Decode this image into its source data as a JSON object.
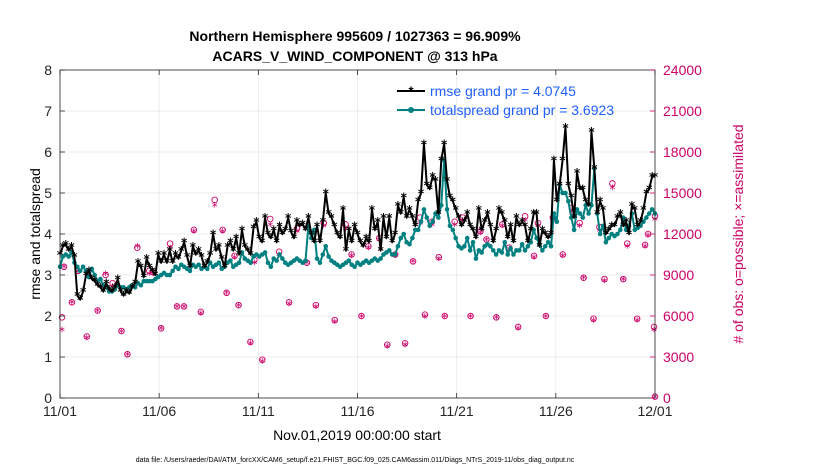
{
  "chart_data": {
    "type": "line",
    "title_line1": "Northern Hemisphere 995609 / 1027363 = 96.909%",
    "title_line2": "ACARS_V_WIND_COMPONENT @ 313 hPa",
    "xlabel": "Nov.01,2019 00:00:00 start",
    "ylabel_left": "rmse and totalspread",
    "ylabel_right": "# of obs: o=possible; ×=assimilated",
    "footer": "data file: /Users/raeder/DAI/ATM_forcXX/CAM6_setup/f.e21.FHIST_BGC.f09_025.CAM6assim.011/Diags_NTrS_2019-11/obs_diag_output.nc",
    "x_range": [
      0,
      30
    ],
    "x_ticks": [
      0,
      5,
      10,
      15,
      20,
      25,
      30
    ],
    "x_tick_labels": [
      "11/01",
      "11/06",
      "11/11",
      "11/16",
      "11/21",
      "11/26",
      "12/01"
    ],
    "ylim_left": [
      0,
      8
    ],
    "y_ticks_left": [
      "0",
      "1",
      "2",
      "3",
      "4",
      "5",
      "6",
      "7",
      "8"
    ],
    "ylim_right": [
      0,
      24000
    ],
    "y_ticks_right": [
      "0",
      "3000",
      "6000",
      "9000",
      "12000",
      "15000",
      "18000",
      "21000",
      "24000"
    ],
    "colors": {
      "rmse": "#000000",
      "spread": "#008080",
      "obs": "#cc0066",
      "legend_text": "#1f5fff"
    },
    "series": [
      {
        "name": "rmse",
        "legend": "rmse grand pr = 4.0745",
        "values": [
          3.5,
          3.7,
          3.75,
          3.6,
          3.7,
          3.45,
          2.5,
          2.4,
          2.6,
          3.0,
          3.1,
          2.9,
          2.85,
          2.75,
          2.7,
          2.6,
          2.8,
          2.65,
          2.6,
          2.7,
          2.9,
          2.6,
          2.5,
          2.6,
          2.55,
          2.7,
          2.8,
          3.3,
          3.2,
          2.95,
          3.4,
          3.2,
          3.1,
          3.0,
          3.5,
          3.3,
          3.5,
          3.3,
          3.6,
          3.3,
          3.5,
          3.4,
          3.6,
          3.8,
          3.45,
          3.2,
          3.7,
          3.5,
          3.6,
          3.45,
          3.2,
          3.3,
          3.5,
          4.0,
          3.6,
          3.7,
          3.4,
          3.2,
          3.7,
          3.8,
          3.6,
          3.9,
          3.5,
          4.1,
          3.7,
          3.6,
          3.5,
          4.15,
          4.3,
          3.9,
          3.8,
          4.4,
          4.0,
          3.9,
          4.1,
          3.8,
          4.2,
          4.0,
          4.1,
          4.4,
          4.05,
          3.9,
          4.3,
          4.2,
          4.25,
          4.1,
          4.4,
          4.0,
          3.8,
          4.2,
          3.8,
          4.3,
          5.0,
          4.5,
          4.4,
          4.2,
          4.0,
          3.9,
          4.6,
          3.6,
          4.1,
          3.8,
          4.2,
          4.0,
          3.8,
          3.7,
          3.9,
          3.8,
          4.6,
          4.1,
          4.3,
          3.6,
          4.4,
          3.9,
          4.4,
          3.8,
          4.0,
          4.7,
          4.5,
          4.9,
          4.4,
          4.6,
          4.4,
          4.2,
          4.8,
          5.0,
          6.2,
          5.2,
          5.1,
          5.4,
          5.3,
          4.5,
          5.8,
          6.2,
          5.3,
          4.9,
          4.8,
          4.6,
          4.4,
          4.2,
          4.3,
          4.5,
          4.2,
          4.1,
          3.9,
          4.6,
          4.1,
          4.3,
          4.5,
          4.2,
          3.8,
          4.1,
          4.6,
          4.5,
          4.3,
          3.9,
          4.2,
          3.8,
          4.4,
          4.2,
          4.3,
          4.2,
          3.8,
          4.1,
          4.5,
          4.5,
          3.7,
          4.1,
          4.0,
          3.9,
          4.0,
          5.8,
          4.8,
          5.2,
          5.8,
          6.6,
          5.2,
          4.9,
          4.4,
          5.5,
          5.1,
          5.1,
          4.8,
          4.7,
          6.5,
          5.6,
          4.5,
          4.8,
          4.6,
          4.0,
          4.1,
          4.2,
          4.2,
          4.4,
          4.5,
          4.2,
          4.3,
          4.0,
          4.7,
          4.6,
          4.2,
          4.3,
          4.6,
          5.0,
          5.1,
          5.4,
          5.4
        ]
      },
      {
        "name": "totalspread",
        "legend": "totalspread grand pr = 3.6923",
        "values": [
          3.2,
          3.45,
          3.5,
          3.45,
          3.55,
          3.3,
          3.2,
          3.1,
          3.2,
          3.1,
          2.95,
          3.15,
          3.0,
          2.85,
          2.9,
          2.75,
          2.7,
          2.6,
          2.6,
          2.65,
          2.75,
          2.7,
          2.7,
          2.65,
          2.7,
          2.75,
          2.7,
          2.8,
          2.75,
          2.85,
          2.85,
          2.85,
          2.85,
          2.9,
          2.95,
          3.0,
          3.05,
          3.0,
          3.0,
          3.1,
          3.2,
          3.15,
          3.25,
          3.2,
          3.15,
          3.1,
          3.25,
          3.2,
          3.25,
          3.15,
          3.2,
          3.15,
          3.3,
          3.2,
          3.25,
          3.3,
          3.15,
          3.2,
          3.3,
          3.35,
          3.2,
          3.25,
          3.3,
          3.55,
          3.4,
          3.35,
          3.3,
          3.45,
          3.5,
          3.45,
          3.5,
          3.55,
          3.3,
          3.2,
          3.4,
          3.35,
          3.5,
          3.4,
          3.3,
          3.25,
          3.3,
          3.35,
          3.4,
          3.35,
          3.3,
          3.35,
          4.2,
          3.9,
          4.1,
          3.4,
          3.3,
          3.5,
          3.7,
          3.45,
          3.35,
          3.3,
          3.25,
          3.2,
          3.25,
          3.3,
          3.35,
          3.25,
          3.2,
          3.3,
          3.25,
          3.3,
          3.35,
          3.3,
          3.35,
          3.4,
          3.35,
          3.4,
          3.5,
          3.55,
          3.6,
          3.5,
          3.5,
          3.7,
          3.9,
          4.0,
          3.8,
          3.75,
          3.9,
          4.1,
          4.1,
          4.3,
          4.6,
          4.4,
          4.2,
          4.3,
          4.5,
          4.4,
          4.7,
          5.8,
          4.6,
          4.2,
          4.1,
          3.9,
          3.7,
          3.65,
          3.7,
          3.9,
          3.6,
          3.8,
          3.4,
          3.6,
          3.55,
          3.7,
          3.75,
          3.7,
          3.6,
          3.5,
          3.6,
          3.55,
          3.8,
          3.5,
          3.65,
          3.5,
          3.6,
          3.6,
          3.75,
          3.6,
          3.7,
          3.8,
          4.1,
          3.9,
          3.75,
          3.6,
          3.7,
          3.8,
          3.7,
          4.5,
          4.3,
          5.2,
          5.0,
          5.0,
          4.8,
          4.4,
          4.1,
          4.6,
          4.5,
          4.4,
          4.7,
          4.5,
          4.7,
          5.6,
          4.5,
          4.0,
          4.2,
          3.8,
          3.9,
          4.0,
          3.95,
          4.0,
          4.1,
          4.4,
          4.1,
          4.2,
          4.5,
          4.1,
          4.15,
          4.2,
          4.3,
          4.4,
          4.5,
          4.6,
          4.5
        ]
      }
    ],
    "obs_possible": [
      [
        0.1,
        5900
      ],
      [
        0.2,
        9600
      ],
      [
        0.6,
        7000
      ],
      [
        0.9,
        9300
      ],
      [
        1.35,
        4500
      ],
      [
        1.9,
        6400
      ],
      [
        2.3,
        9000
      ],
      [
        2.65,
        8400
      ],
      [
        3.1,
        4900
      ],
      [
        3.4,
        3200
      ],
      [
        3.9,
        11000
      ],
      [
        4.5,
        9300
      ],
      [
        4.7,
        9200
      ],
      [
        5.1,
        5100
      ],
      [
        5.55,
        11300
      ],
      [
        5.9,
        6700
      ],
      [
        6.25,
        6700
      ],
      [
        6.75,
        12300
      ],
      [
        7.1,
        6300
      ],
      [
        7.8,
        14500
      ],
      [
        8.2,
        12300
      ],
      [
        8.4,
        7700
      ],
      [
        8.8,
        10400
      ],
      [
        9.0,
        6800
      ],
      [
        9.6,
        4100
      ],
      [
        9.8,
        10100
      ],
      [
        10.2,
        2800
      ],
      [
        10.6,
        13100
      ],
      [
        11.05,
        10700
      ],
      [
        11.55,
        7000
      ],
      [
        11.95,
        12400
      ],
      [
        12.45,
        9900
      ],
      [
        12.9,
        6800
      ],
      [
        13.3,
        12800
      ],
      [
        13.85,
        5700
      ],
      [
        14.4,
        12700
      ],
      [
        14.7,
        10500
      ],
      [
        15.2,
        6000
      ],
      [
        15.55,
        11100
      ],
      [
        16.1,
        11700
      ],
      [
        16.5,
        3900
      ],
      [
        16.9,
        10500
      ],
      [
        17.4,
        4000
      ],
      [
        17.8,
        10000
      ],
      [
        18.15,
        13200
      ],
      [
        18.4,
        6100
      ],
      [
        18.75,
        12900
      ],
      [
        19.1,
        10300
      ],
      [
        19.4,
        6000
      ],
      [
        19.9,
        12900
      ],
      [
        20.3,
        13200
      ],
      [
        20.7,
        6000
      ],
      [
        21.2,
        12200
      ],
      [
        21.5,
        11600
      ],
      [
        22.0,
        5900
      ],
      [
        22.3,
        12700
      ],
      [
        22.65,
        11000
      ],
      [
        23.1,
        5200
      ],
      [
        23.45,
        13300
      ],
      [
        23.9,
        10400
      ],
      [
        24.1,
        12800
      ],
      [
        24.5,
        6000
      ],
      [
        24.85,
        13200
      ],
      [
        25.35,
        10500
      ],
      [
        25.8,
        13900
      ],
      [
        26.2,
        12800
      ],
      [
        26.4,
        8800
      ],
      [
        26.9,
        5800
      ],
      [
        27.2,
        12500
      ],
      [
        27.45,
        8700
      ],
      [
        27.85,
        15700
      ],
      [
        28.4,
        8700
      ],
      [
        28.6,
        11300
      ],
      [
        29.1,
        5800
      ],
      [
        29.5,
        11200
      ],
      [
        29.65,
        12000
      ],
      [
        29.95,
        5200
      ],
      [
        30.0,
        13300
      ],
      [
        30.0,
        100
      ]
    ],
    "obs_assimilated": [
      [
        0.1,
        4900
      ],
      [
        0.2,
        9500
      ],
      [
        0.6,
        6900
      ],
      [
        0.9,
        9200
      ],
      [
        1.35,
        4300
      ],
      [
        1.9,
        6300
      ],
      [
        2.3,
        9000
      ],
      [
        2.65,
        8100
      ],
      [
        3.1,
        4800
      ],
      [
        3.4,
        3100
      ],
      [
        3.9,
        11000
      ],
      [
        4.5,
        9000
      ],
      [
        4.7,
        9000
      ],
      [
        5.1,
        5000
      ],
      [
        5.55,
        10900
      ],
      [
        5.9,
        6600
      ],
      [
        6.25,
        6600
      ],
      [
        6.75,
        12100
      ],
      [
        7.1,
        6100
      ],
      [
        7.8,
        14000
      ],
      [
        8.2,
        12100
      ],
      [
        8.4,
        7600
      ],
      [
        8.8,
        10200
      ],
      [
        9.0,
        6700
      ],
      [
        9.6,
        3900
      ],
      [
        9.8,
        9800
      ],
      [
        10.2,
        2600
      ],
      [
        10.6,
        12600
      ],
      [
        11.05,
        10400
      ],
      [
        11.55,
        6800
      ],
      [
        11.95,
        12100
      ],
      [
        12.45,
        9800
      ],
      [
        12.9,
        6600
      ],
      [
        13.3,
        12500
      ],
      [
        13.85,
        5500
      ],
      [
        14.4,
        12300
      ],
      [
        14.7,
        10300
      ],
      [
        15.2,
        5900
      ],
      [
        15.55,
        10900
      ],
      [
        16.1,
        11500
      ],
      [
        16.5,
        3700
      ],
      [
        16.9,
        10300
      ],
      [
        17.4,
        3800
      ],
      [
        17.8,
        9900
      ],
      [
        18.15,
        12700
      ],
      [
        18.4,
        5900
      ],
      [
        18.75,
        12600
      ],
      [
        19.1,
        10100
      ],
      [
        19.4,
        5900
      ],
      [
        19.9,
        12600
      ],
      [
        20.3,
        12900
      ],
      [
        20.7,
        5900
      ],
      [
        21.2,
        12000
      ],
      [
        21.5,
        11500
      ],
      [
        22.0,
        5800
      ],
      [
        22.3,
        12500
      ],
      [
        22.65,
        10800
      ],
      [
        23.1,
        5000
      ],
      [
        23.45,
        12900
      ],
      [
        23.9,
        10200
      ],
      [
        24.1,
        12500
      ],
      [
        24.5,
        5900
      ],
      [
        24.85,
        12900
      ],
      [
        25.35,
        10300
      ],
      [
        25.8,
        13600
      ],
      [
        26.2,
        12500
      ],
      [
        26.4,
        8700
      ],
      [
        26.9,
        5600
      ],
      [
        27.2,
        12200
      ],
      [
        27.45,
        8500
      ],
      [
        27.85,
        15300
      ],
      [
        28.4,
        8600
      ],
      [
        28.6,
        11000
      ],
      [
        29.1,
        5600
      ],
      [
        29.5,
        11000
      ],
      [
        29.65,
        11800
      ],
      [
        29.95,
        4900
      ],
      [
        30.0,
        13000
      ],
      [
        30.0,
        0
      ]
    ]
  }
}
